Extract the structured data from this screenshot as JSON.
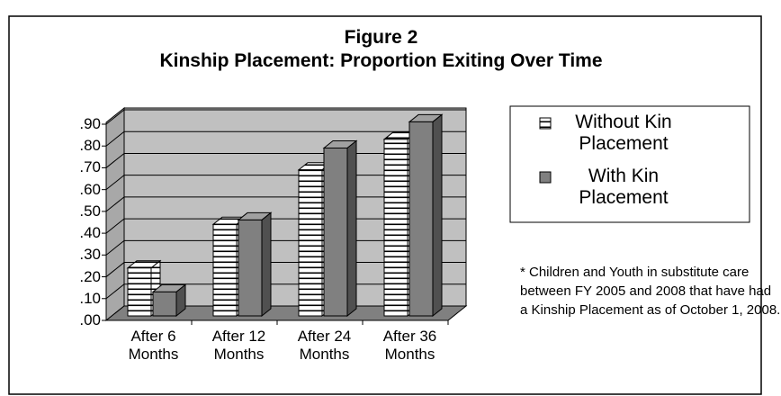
{
  "chart_data": {
    "type": "bar3d",
    "title": "Figure 2",
    "subtitle": "Kinship Placement: Proportion Exiting Over Time",
    "categories": [
      "After 6 Months",
      "After 12 Months",
      "After 24 Months",
      "After 36 Months"
    ],
    "series": [
      {
        "name": "Without Kin Placement",
        "color": "#ffffff",
        "hatch": "horizontal",
        "values": [
          0.22,
          0.42,
          0.67,
          0.81
        ]
      },
      {
        "name": "With Kin Placement",
        "color": "#808080",
        "values": [
          0.11,
          0.44,
          0.77,
          0.89
        ]
      }
    ],
    "ylim": [
      0,
      0.9
    ],
    "yticks": [
      {
        "value": 0,
        "label": ".00"
      },
      {
        "value": 0.1,
        "label": ".10"
      },
      {
        "value": 0.2,
        "label": ".20"
      },
      {
        "value": 0.3,
        "label": ".30"
      },
      {
        "value": 0.4,
        "label": ".40"
      },
      {
        "value": 0.5,
        "label": ".50"
      },
      {
        "value": 0.6,
        "label": ".60"
      },
      {
        "value": 0.7,
        "label": ".70"
      },
      {
        "value": 0.8,
        "label": ".80"
      },
      {
        "value": 0.9,
        "label": ".90"
      }
    ],
    "grid": true,
    "legend": "right",
    "annotation": "* Children and Youth in substitute care between FY 2005 and 2008 that have had a Kinship Placement as of October 1, 2008."
  }
}
